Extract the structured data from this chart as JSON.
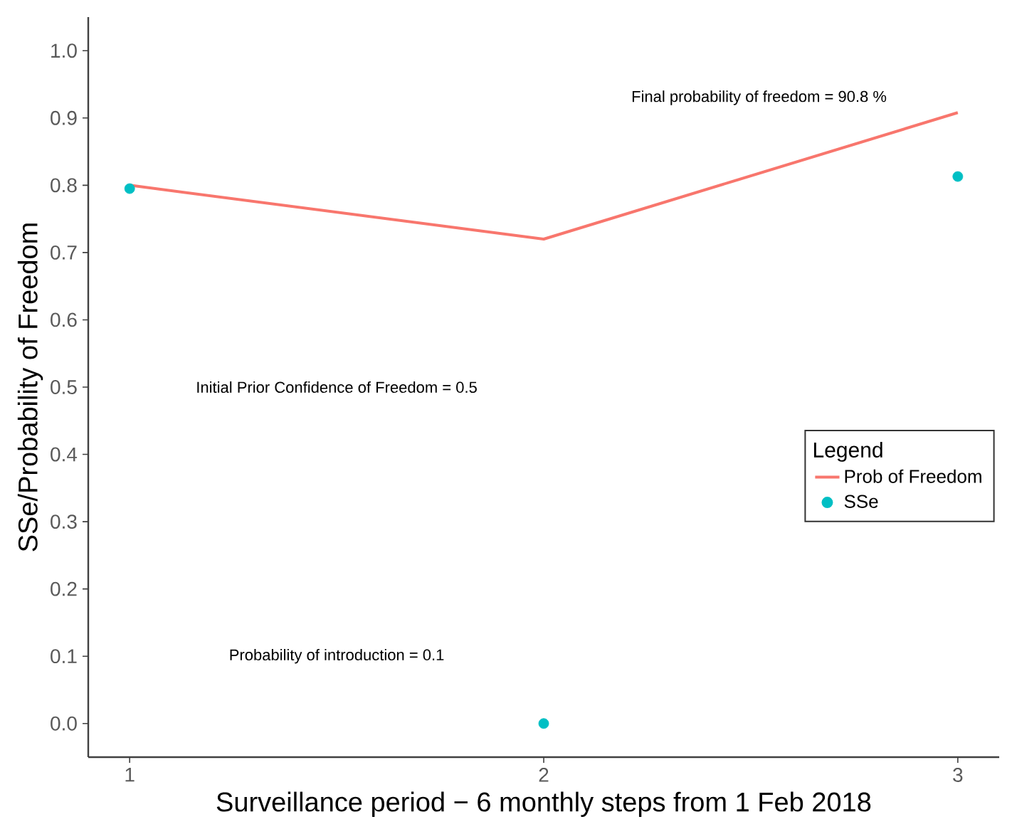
{
  "chart_data": {
    "type": "line",
    "xlabel": "Surveillance period − 6 monthly steps from 1 Feb 2018",
    "ylabel": "SSe/Probability of Freedom",
    "legend_title": "Legend",
    "x": [
      1,
      2,
      3
    ],
    "series": [
      {
        "name": "Prob of Freedom",
        "color": "#f8766d",
        "values": [
          0.8,
          0.72,
          0.908
        ]
      },
      {
        "name": "SSe",
        "type": "scatter",
        "marker": "circle",
        "color": "#00bfc4",
        "values": [
          0.795,
          0.0,
          0.813
        ]
      }
    ],
    "xlim": [
      0.9,
      3.1
    ],
    "ylim": [
      -0.05,
      1.05
    ],
    "xticks": [
      1,
      2,
      3
    ],
    "yticks": [
      {
        "value": 0,
        "label": "0.0"
      },
      0.1,
      0.2,
      0.3,
      0.4,
      0.5,
      0.6,
      0.7,
      0.8,
      0.9,
      {
        "value": 1,
        "label": "1.0"
      }
    ],
    "annotations": [
      "Final probability of freedom = 90.8 %",
      "Initial Prior Confidence of Freedom = 0.5",
      "Probability of introduction = 0.1"
    ],
    "legend": "right",
    "grid": false
  }
}
